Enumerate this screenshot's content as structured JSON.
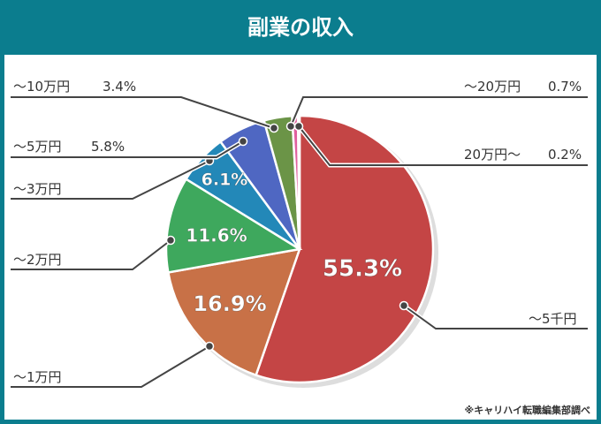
{
  "title": "副業の収入",
  "source": "※キャリハイ転職編集部調べ",
  "chart_data": {
    "type": "pie",
    "title": "副業の収入",
    "start": "top",
    "direction": "clockwise",
    "categories": [
      "～5千円",
      "～1万円",
      "～2万円",
      "～3万円",
      "～5万円",
      "～10万円",
      "～20万円",
      "20万円～"
    ],
    "values": [
      55.3,
      16.9,
      11.6,
      6.1,
      5.8,
      3.4,
      0.7,
      0.2
    ],
    "labels": [
      "55.3%",
      "16.9%",
      "11.6%",
      "6.1%",
      "5.8%",
      "3.4%",
      "0.7%",
      "0.2%"
    ],
    "colors": [
      "#c44545",
      "#c87147",
      "#3ea85d",
      "#2388b8",
      "#4f67c2",
      "#6b9447",
      "#e0619f",
      "#d28f1c"
    ],
    "header_color": "#0b7d8e"
  }
}
